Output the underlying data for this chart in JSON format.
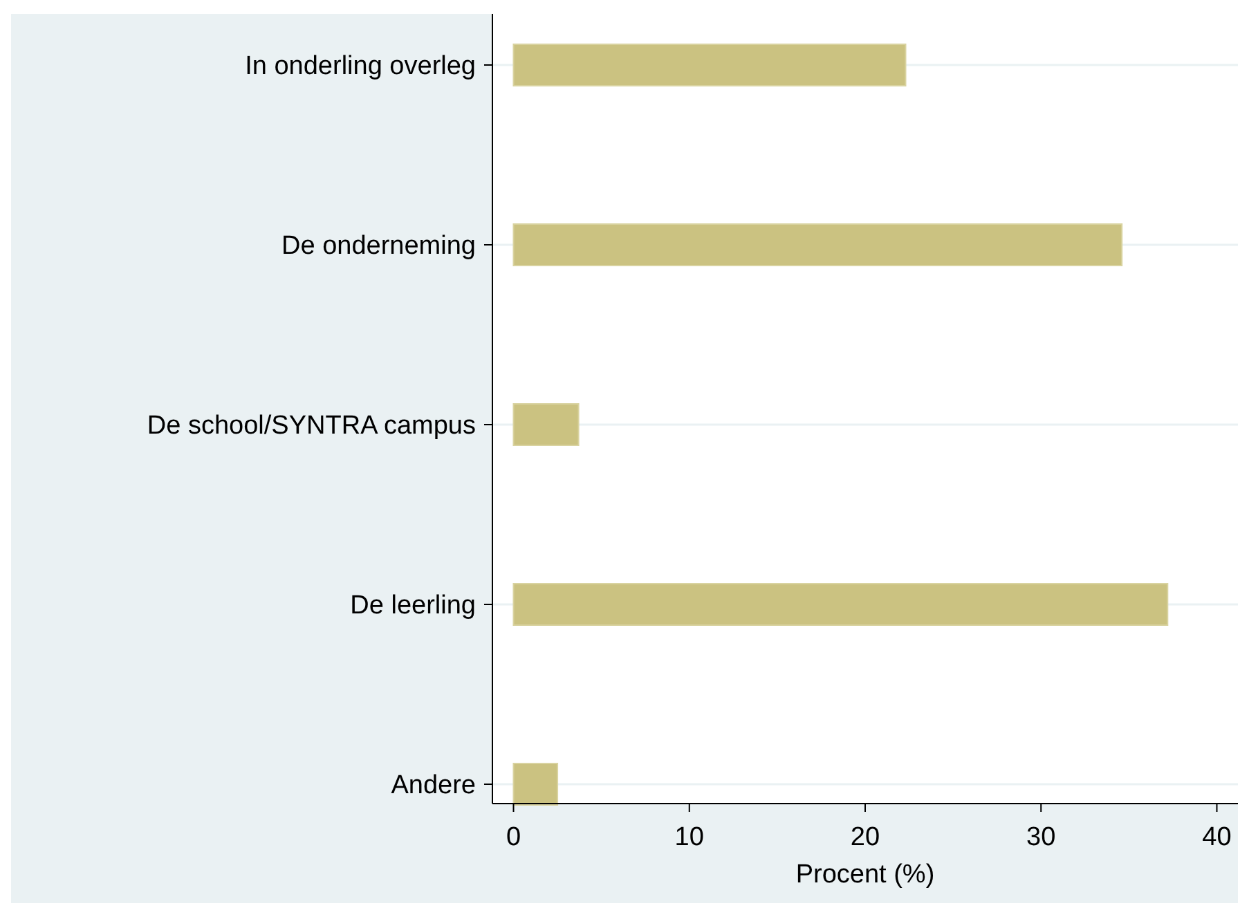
{
  "chart_data": {
    "type": "bar",
    "orientation": "horizontal",
    "xlabel": "Procent (%)",
    "categories": [
      "In onderling overleg",
      "De onderneming",
      "De school/SYNTRA campus",
      "De leerling",
      "Andere"
    ],
    "values": [
      22.3,
      34.6,
      3.7,
      37.2,
      2.5
    ],
    "color": "#cbc281",
    "xlim": [
      -1.2,
      41.2
    ],
    "xticks": [
      0,
      10,
      20,
      30,
      40
    ],
    "grid": "y"
  }
}
